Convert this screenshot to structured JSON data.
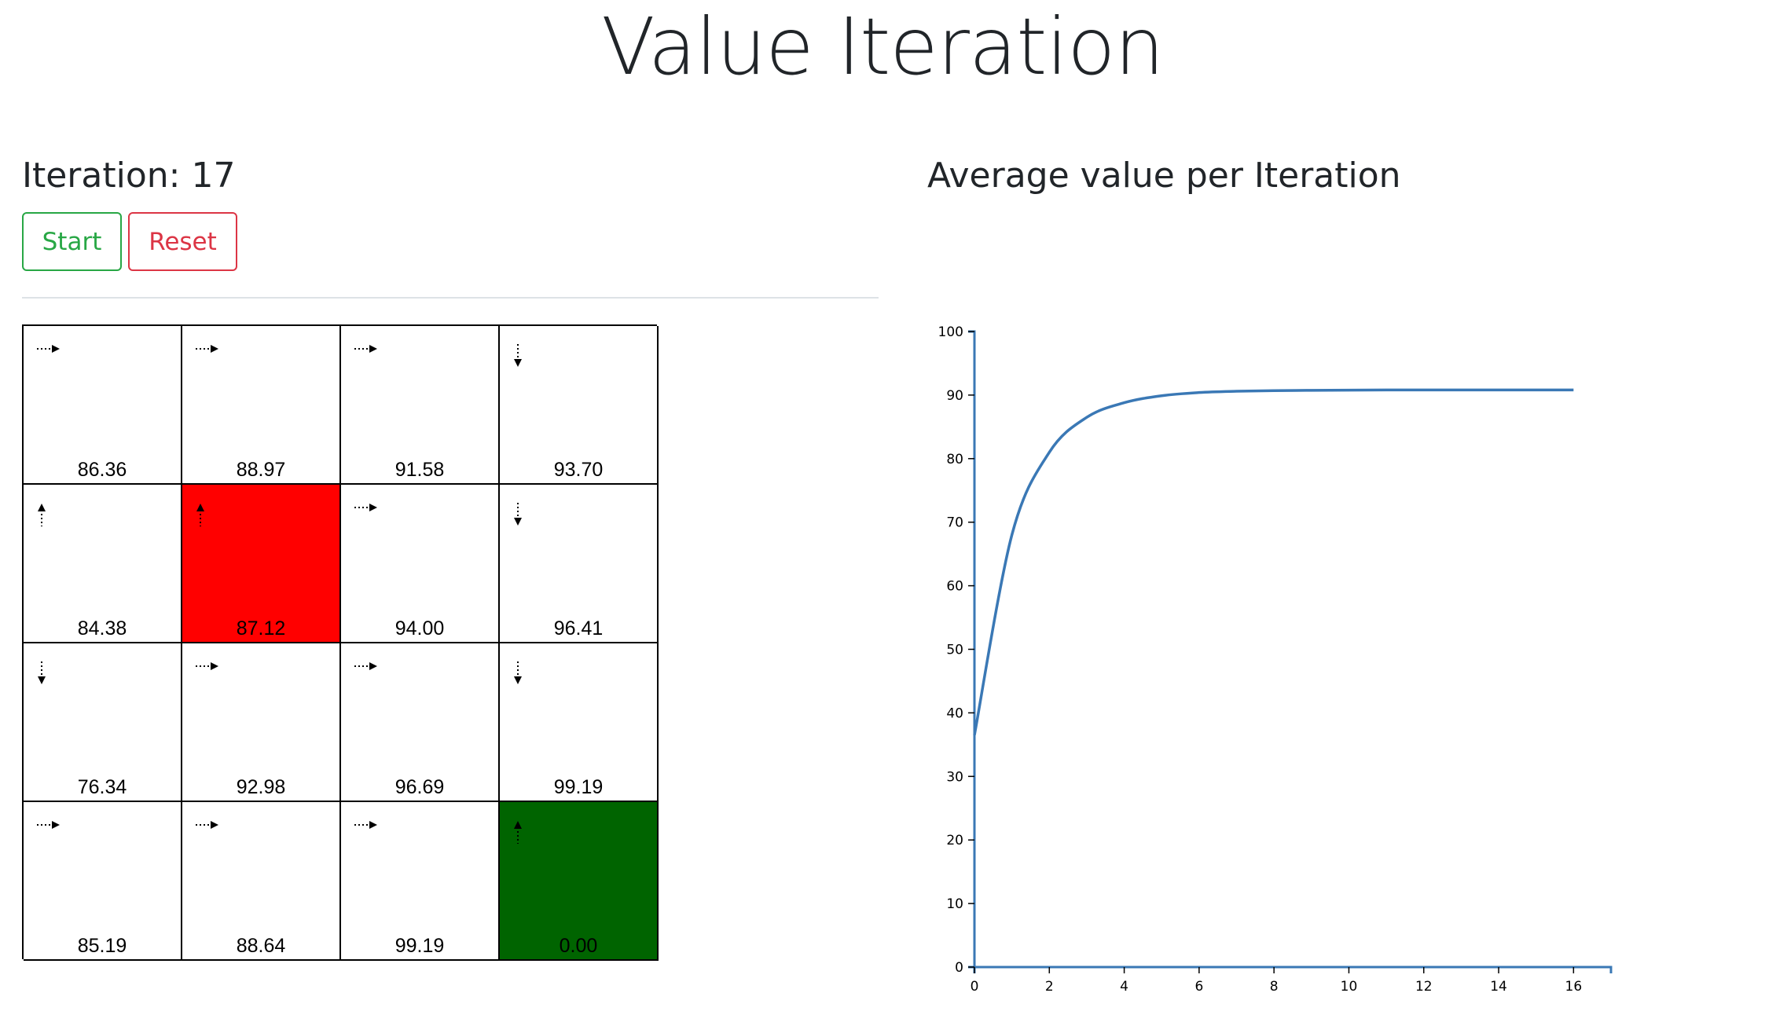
{
  "page": {
    "title": "Value Iteration"
  },
  "controls": {
    "iteration_label": "Iteration: 17",
    "start_label": "Start",
    "reset_label": "Reset"
  },
  "grid": {
    "rows": 4,
    "cols": 4,
    "cells": [
      {
        "value": "86.36",
        "action": "right",
        "type": "normal"
      },
      {
        "value": "88.97",
        "action": "right",
        "type": "normal"
      },
      {
        "value": "91.58",
        "action": "right",
        "type": "normal"
      },
      {
        "value": "93.70",
        "action": "down",
        "type": "normal"
      },
      {
        "value": "84.38",
        "action": "up",
        "type": "normal"
      },
      {
        "value": "87.12",
        "action": "up",
        "type": "penalty"
      },
      {
        "value": "94.00",
        "action": "right",
        "type": "normal"
      },
      {
        "value": "96.41",
        "action": "down",
        "type": "normal"
      },
      {
        "value": "76.34",
        "action": "down",
        "type": "normal"
      },
      {
        "value": "92.98",
        "action": "right",
        "type": "normal"
      },
      {
        "value": "96.69",
        "action": "right",
        "type": "normal"
      },
      {
        "value": "99.19",
        "action": "down",
        "type": "normal"
      },
      {
        "value": "85.19",
        "action": "right",
        "type": "normal"
      },
      {
        "value": "88.64",
        "action": "right",
        "type": "normal"
      },
      {
        "value": "99.19",
        "action": "right",
        "type": "normal"
      },
      {
        "value": "0.00",
        "action": "up",
        "type": "goal"
      }
    ]
  },
  "colors": {
    "penalty": "#ff0000",
    "goal": "#006400",
    "line": "#3a78b5",
    "axis": "#3a78b5",
    "start_button": "#28a745",
    "reset_button": "#dc3545"
  },
  "chart_data": {
    "type": "line",
    "title": "Average value per Iteration",
    "xlabel": "",
    "ylabel": "",
    "xlim": [
      0,
      17
    ],
    "ylim": [
      0,
      100
    ],
    "x_ticks": [
      0,
      2,
      4,
      6,
      8,
      10,
      12,
      14,
      16
    ],
    "y_ticks": [
      0,
      10,
      20,
      30,
      40,
      50,
      60,
      70,
      80,
      90,
      100
    ],
    "grid": false,
    "series": [
      {
        "x": [
          0,
          1,
          2,
          3,
          4,
          5,
          6,
          7,
          8,
          9,
          10,
          11,
          12,
          13,
          14,
          15,
          16
        ],
        "values": [
          36.5,
          68.0,
          81.0,
          86.5,
          88.8,
          89.9,
          90.4,
          90.6,
          90.7,
          90.75,
          90.78,
          90.8,
          90.8,
          90.8,
          90.8,
          90.8,
          90.8
        ]
      }
    ]
  }
}
